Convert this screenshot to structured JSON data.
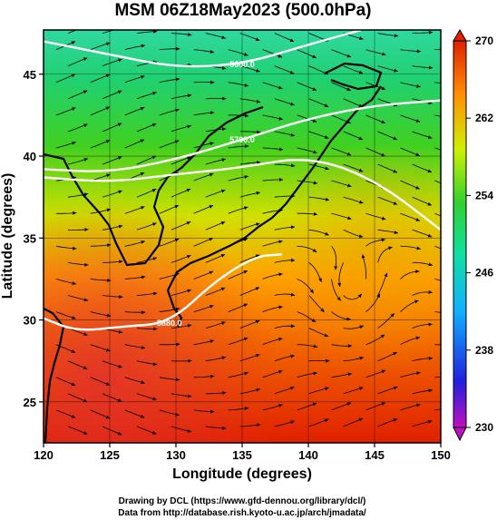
{
  "chart_data": {
    "type": "heatmap",
    "title": "MSM 06Z18May2023 (500.0hPa)",
    "xlabel": "Longitude (degrees)",
    "ylabel": "Latitude  (degrees)",
    "xlim": [
      120,
      150
    ],
    "ylim": [
      22.5,
      47.7
    ],
    "xticks": [
      "120",
      "125",
      "130",
      "135",
      "140",
      "145",
      "150"
    ],
    "yticks": [
      "25",
      "30",
      "35",
      "40",
      "45"
    ],
    "colorbar": {
      "min": 230,
      "max": 270,
      "ticks": [
        "230",
        "238",
        "246",
        "254",
        "262",
        "270"
      ],
      "colors": [
        "#c010c0",
        "#1010e0",
        "#10b0ff",
        "#10e0a0",
        "#30d030",
        "#d0f000",
        "#ff9000",
        "#e02000"
      ]
    },
    "contours": [
      {
        "label": "5600.0",
        "points": [
          [
            120,
            47.0
          ],
          [
            125,
            46.2
          ],
          [
            130,
            45.4
          ],
          [
            135,
            45.6
          ],
          [
            140,
            46.8
          ],
          [
            144,
            47.7
          ]
        ]
      },
      {
        "label": "5700.0",
        "points": [
          [
            120,
            39.2
          ],
          [
            125,
            39.0
          ],
          [
            130,
            39.8
          ],
          [
            135,
            41.0
          ],
          [
            140,
            42.3
          ],
          [
            145,
            43.1
          ],
          [
            150,
            43.4
          ]
        ]
      },
      {
        "label": "",
        "points": [
          [
            120,
            38.7
          ],
          [
            125,
            38.4
          ],
          [
            130,
            38.9
          ],
          [
            135,
            39.3
          ],
          [
            140,
            40.0
          ],
          [
            145,
            38.6
          ],
          [
            150,
            35.5
          ]
        ]
      },
      {
        "label": "5880.0",
        "points": [
          [
            120,
            30.1
          ],
          [
            122.5,
            29.3
          ],
          [
            126,
            29.6
          ],
          [
            129.5,
            29.8
          ],
          [
            133,
            32.4
          ],
          [
            136,
            33.9
          ],
          [
            138,
            34.0
          ]
        ]
      }
    ],
    "low_center": [
      143.3,
      31.0
    ],
    "grid": true
  },
  "credits": {
    "line1": "Drawing by DCL (https://www.gfd-dennou.org/library/dcl/)",
    "line2": "Data from http://database.rish.kyoto-u.ac.jp/arch/jmadata/"
  }
}
